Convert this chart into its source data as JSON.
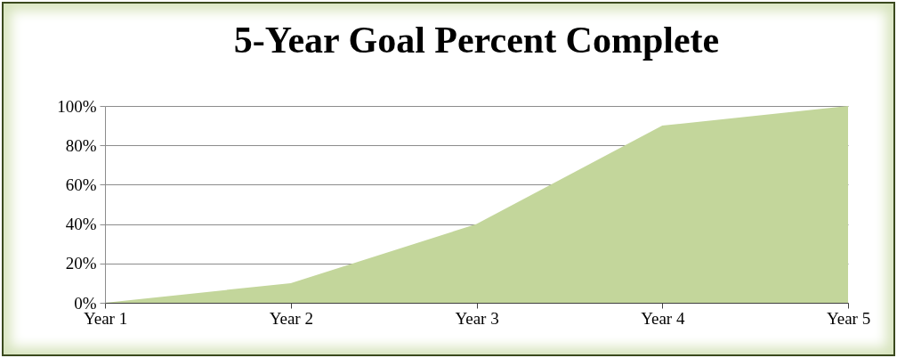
{
  "chart_data": {
    "type": "area",
    "title": "5-Year Goal Percent Complete",
    "categories": [
      "Year 1",
      "Year 2",
      "Year 3",
      "Year 4",
      "Year 5"
    ],
    "values": [
      0,
      10,
      40,
      90,
      100
    ],
    "color": "#c3d69b",
    "ylim": [
      0,
      100
    ],
    "yticks": [
      {
        "value": 0,
        "label": "0%"
      },
      {
        "value": 20,
        "label": "20%"
      },
      {
        "value": 40,
        "label": "40%"
      },
      {
        "value": 60,
        "label": "60%"
      },
      {
        "value": 80,
        "label": "80%"
      },
      {
        "value": 100,
        "label": "100%"
      }
    ],
    "grid": "y"
  }
}
